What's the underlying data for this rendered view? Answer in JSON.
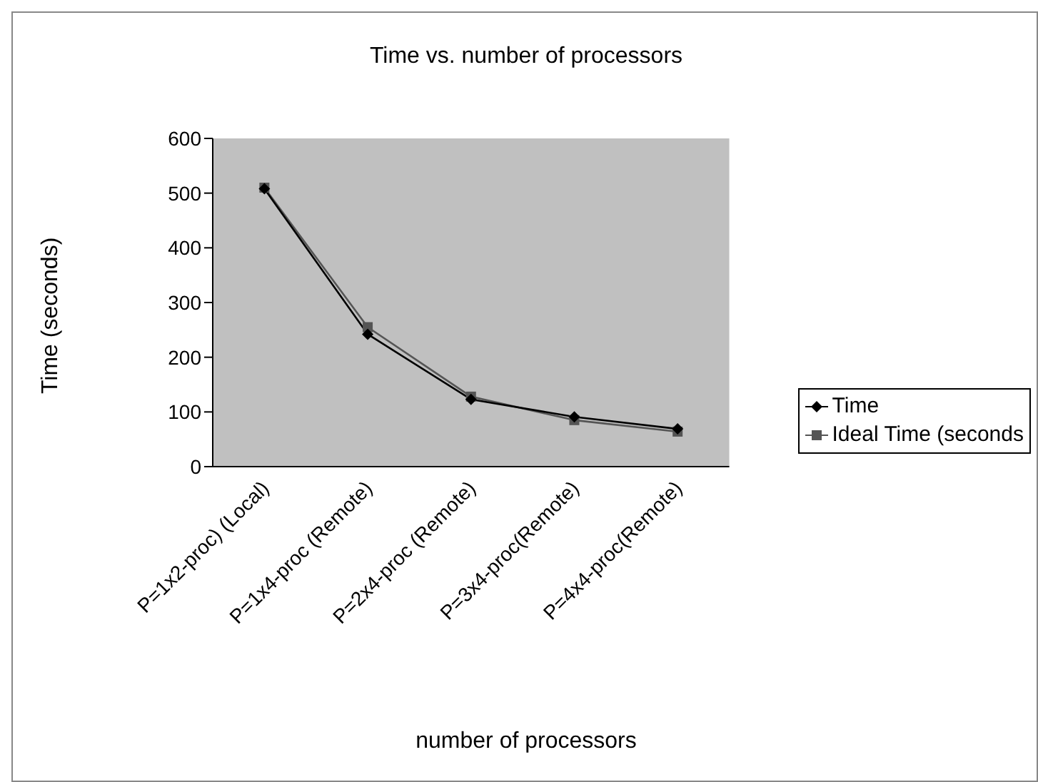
{
  "chart_data": {
    "type": "line",
    "title": "Time vs. number of processors",
    "xlabel": "number of processors",
    "ylabel": "Time (seconds)",
    "categories": [
      "P=1x2-proc) (Local)",
      "P=1x4-proc (Remote)",
      "P=2x4-proc (Remote)",
      "P=3x4-proc(Remote)",
      "P=4x4-proc(Remote)"
    ],
    "series": [
      {
        "name": "Time",
        "color": "#000000",
        "marker": "diamond",
        "values": [
          508,
          242,
          123,
          91,
          69
        ]
      },
      {
        "name": "Ideal Time (seconds",
        "color": "#555555",
        "marker": "square",
        "values": [
          510,
          255,
          128,
          85,
          64
        ]
      }
    ],
    "ylim": [
      0,
      600
    ],
    "yticks": [
      0,
      100,
      200,
      300,
      400,
      500,
      600
    ],
    "grid": false,
    "legend": "right",
    "line_style": "solid"
  }
}
